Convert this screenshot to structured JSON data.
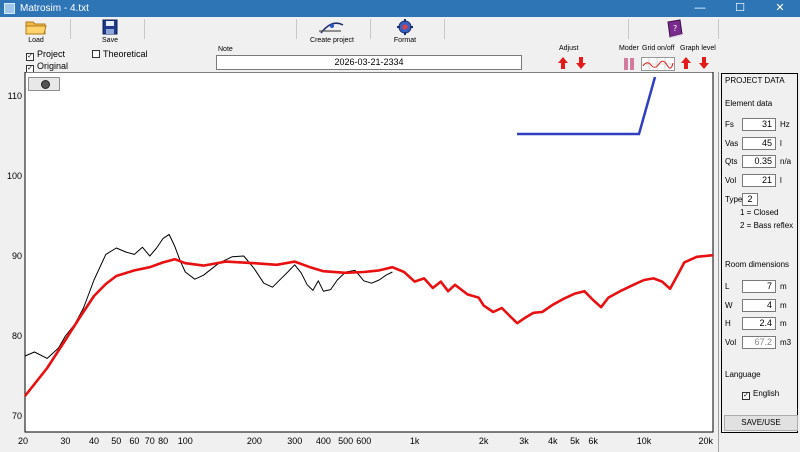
{
  "window": {
    "title": "Matrosim - 4.txt",
    "minimize_glyph": "—",
    "maximize_glyph": "☐",
    "close_glyph": "✕"
  },
  "toolbar": {
    "load_label": "Load",
    "save_label": "Save",
    "create_project_label": "Create project",
    "format_label": "Format",
    "note_label": "Note",
    "note_value": "2026-03-21-2334",
    "adjust_label": "Adjust",
    "moder_label": "Moder",
    "grid_label": "Grid on/off",
    "graph_level_label": "Graph level"
  },
  "checks": {
    "project": {
      "label": "Project",
      "checked": true
    },
    "original": {
      "label": "Original",
      "checked": true
    },
    "theoretical": {
      "label": "Theoretical",
      "checked": false
    }
  },
  "side": {
    "project_data_title": "PROJECT DATA",
    "element_data_title": "Element data",
    "fs": {
      "label": "Fs",
      "value": "31",
      "unit": "Hz"
    },
    "vas": {
      "label": "Vas",
      "value": "45",
      "unit": "l"
    },
    "qts": {
      "label": "Qts",
      "value": "0.35",
      "unit": "n/a"
    },
    "vol": {
      "label": "Vol",
      "value": "21",
      "unit": "l"
    },
    "type": {
      "label": "Type",
      "value": "2"
    },
    "type_hint_1": "1 = Closed",
    "type_hint_2": "2 = Bass reflex",
    "room_title": "Room dimensions",
    "room_l": {
      "label": "L",
      "value": "7",
      "unit": "m"
    },
    "room_w": {
      "label": "W",
      "value": "4",
      "unit": "m"
    },
    "room_h": {
      "label": "H",
      "value": "2.4",
      "unit": "m"
    },
    "room_vol": {
      "label": "Vol",
      "value": "67.2",
      "unit": "m3"
    },
    "language_title": "Language",
    "language_option": {
      "label": "English",
      "checked": true
    },
    "save_use_label": "SAVE/USE"
  },
  "colors": {
    "project_curve": "#e81010",
    "original_curve": "#000000",
    "overlay_line": "#2f3fbf",
    "titlebar": "#2e75b6"
  },
  "chart_data": {
    "type": "line",
    "x_scale": "log",
    "xlim": [
      20,
      20000
    ],
    "ylim": [
      68,
      113
    ],
    "grid": false,
    "y_ticks": [
      70,
      80,
      90,
      100,
      110
    ],
    "x_ticks": [
      {
        "v": 20,
        "label": "20"
      },
      {
        "v": 30,
        "label": "30"
      },
      {
        "v": 40,
        "label": "40"
      },
      {
        "v": 50,
        "label": "50"
      },
      {
        "v": 60,
        "label": "60"
      },
      {
        "v": 70,
        "label": "70"
      },
      {
        "v": 80,
        "label": "80"
      },
      {
        "v": 100,
        "label": "100"
      },
      {
        "v": 200,
        "label": "200"
      },
      {
        "v": 300,
        "label": "300"
      },
      {
        "v": 400,
        "label": "400"
      },
      {
        "v": 500,
        "label": "500"
      },
      {
        "v": 600,
        "label": "600"
      },
      {
        "v": 1000,
        "label": "1k"
      },
      {
        "v": 2000,
        "label": "2k"
      },
      {
        "v": 3000,
        "label": "3k"
      },
      {
        "v": 4000,
        "label": "4k"
      },
      {
        "v": 5000,
        "label": "5k"
      },
      {
        "v": 6000,
        "label": "6k"
      },
      {
        "v": 10000,
        "label": "10k"
      },
      {
        "v": 20000,
        "label": "20k"
      }
    ],
    "series": [
      {
        "key": "project",
        "color": "#e81010",
        "points": [
          [
            20,
            72.5
          ],
          [
            25,
            76
          ],
          [
            30,
            79.5
          ],
          [
            35,
            82.5
          ],
          [
            40,
            85
          ],
          [
            45,
            86.5
          ],
          [
            50,
            87.5
          ],
          [
            60,
            88.2
          ],
          [
            70,
            88.6
          ],
          [
            80,
            89.2
          ],
          [
            90,
            89.6
          ],
          [
            100,
            89.1
          ],
          [
            120,
            88.8
          ],
          [
            150,
            89.3
          ],
          [
            200,
            89.1
          ],
          [
            250,
            88.9
          ],
          [
            300,
            89.3
          ],
          [
            350,
            88.6
          ],
          [
            400,
            88.1
          ],
          [
            500,
            87.9
          ],
          [
            600,
            88.0
          ],
          [
            700,
            88.2
          ],
          [
            800,
            88.6
          ],
          [
            900,
            88.0
          ],
          [
            1000,
            86.8
          ],
          [
            1100,
            87.2
          ],
          [
            1200,
            86.0
          ],
          [
            1300,
            86.8
          ],
          [
            1400,
            85.6
          ],
          [
            1500,
            86.4
          ],
          [
            1700,
            85.2
          ],
          [
            1900,
            84.8
          ],
          [
            2000,
            83.8
          ],
          [
            2200,
            83.0
          ],
          [
            2400,
            83.5
          ],
          [
            2600,
            82.5
          ],
          [
            2800,
            81.6
          ],
          [
            3000,
            82.2
          ],
          [
            3300,
            82.9
          ],
          [
            3600,
            83.0
          ],
          [
            4000,
            83.9
          ],
          [
            4500,
            84.7
          ],
          [
            5000,
            85.3
          ],
          [
            5500,
            85.6
          ],
          [
            6000,
            84.5
          ],
          [
            6500,
            83.6
          ],
          [
            7000,
            84.8
          ],
          [
            8000,
            85.7
          ],
          [
            9000,
            86.4
          ],
          [
            10000,
            87.0
          ],
          [
            11000,
            87.2
          ],
          [
            12000,
            86.8
          ],
          [
            13000,
            85.9
          ],
          [
            14000,
            87.6
          ],
          [
            15000,
            89.2
          ],
          [
            17000,
            89.9
          ],
          [
            20000,
            90.1
          ]
        ]
      },
      {
        "key": "original",
        "color": "#000000",
        "points": [
          [
            20,
            77.5
          ],
          [
            22,
            78.0
          ],
          [
            25,
            77.2
          ],
          [
            28,
            78.5
          ],
          [
            30,
            80.0
          ],
          [
            33,
            81.5
          ],
          [
            36,
            83.5
          ],
          [
            40,
            87.0
          ],
          [
            45,
            90.2
          ],
          [
            50,
            91.0
          ],
          [
            55,
            90.5
          ],
          [
            60,
            90.2
          ],
          [
            65,
            91.1
          ],
          [
            70,
            90.0
          ],
          [
            75,
            91.0
          ],
          [
            80,
            92.2
          ],
          [
            85,
            92.7
          ],
          [
            90,
            91.2
          ],
          [
            95,
            89.4
          ],
          [
            100,
            88.0
          ],
          [
            110,
            87.1
          ],
          [
            120,
            87.6
          ],
          [
            140,
            89.1
          ],
          [
            160,
            89.9
          ],
          [
            180,
            90.0
          ],
          [
            200,
            88.4
          ],
          [
            220,
            86.6
          ],
          [
            240,
            86.1
          ],
          [
            260,
            87.1
          ],
          [
            280,
            88.0
          ],
          [
            300,
            88.9
          ],
          [
            320,
            87.9
          ],
          [
            340,
            86.4
          ],
          [
            360,
            85.7
          ],
          [
            380,
            86.9
          ],
          [
            400,
            85.6
          ],
          [
            430,
            85.8
          ],
          [
            460,
            87.0
          ],
          [
            500,
            88.0
          ],
          [
            550,
            88.2
          ],
          [
            600,
            86.9
          ],
          [
            650,
            86.6
          ],
          [
            700,
            87.0
          ],
          [
            750,
            87.6
          ],
          [
            800,
            88.0
          ]
        ]
      }
    ]
  }
}
